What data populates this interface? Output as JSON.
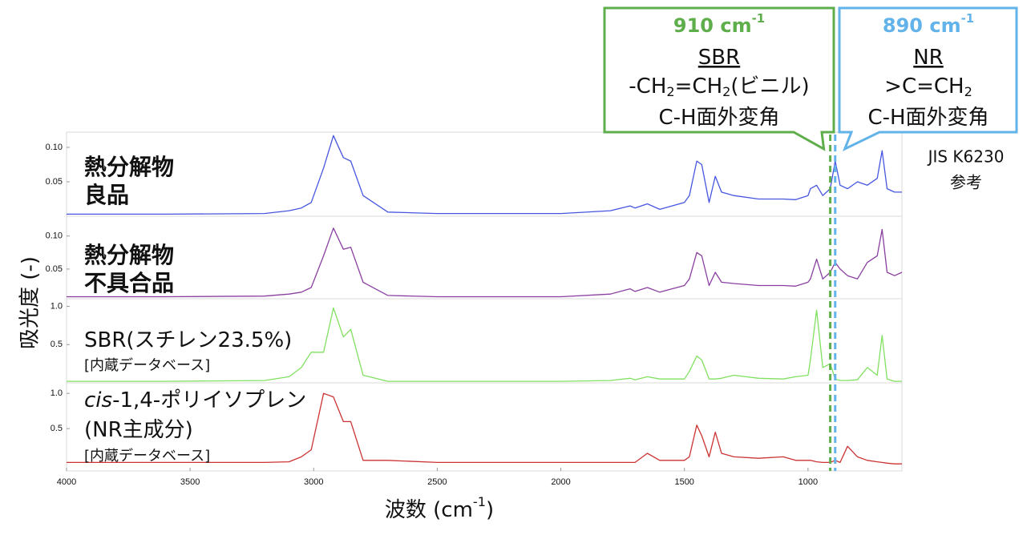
{
  "chart_data": [
    {
      "type": "line",
      "label": [
        [
          "熱分解物"
        ],
        [
          "良品"
        ]
      ],
      "color": "#4656e0",
      "x": [
        4000,
        3600,
        3200,
        3100,
        3050,
        3010,
        2960,
        2920,
        2880,
        2850,
        2800,
        2700,
        2500,
        2000,
        1800,
        1720,
        1700,
        1650,
        1600,
        1500,
        1480,
        1450,
        1430,
        1400,
        1375,
        1350,
        1300,
        1200,
        1100,
        1050,
        1000,
        990,
        965,
        940,
        910,
        890,
        870,
        840,
        800,
        760,
        720,
        700,
        680,
        650,
        620
      ],
      "values": [
        0.003,
        0.003,
        0.004,
        0.008,
        0.012,
        0.02,
        0.07,
        0.117,
        0.085,
        0.08,
        0.03,
        0.006,
        0.004,
        0.004,
        0.008,
        0.015,
        0.012,
        0.018,
        0.01,
        0.02,
        0.03,
        0.08,
        0.075,
        0.02,
        0.058,
        0.035,
        0.03,
        0.025,
        0.025,
        0.024,
        0.03,
        0.04,
        0.045,
        0.03,
        0.04,
        0.08,
        0.045,
        0.04,
        0.05,
        0.045,
        0.055,
        0.095,
        0.04,
        0.035,
        0.035
      ],
      "xlim": [
        4000,
        620
      ],
      "ylim": [
        0,
        0.122
      ],
      "yticks": [
        {
          "value": 0.1,
          "label": "0.10"
        },
        {
          "value": 0.05,
          "label": "0.05"
        }
      ]
    },
    {
      "type": "line",
      "label": [
        [
          "熱分解物"
        ],
        [
          "不具合品"
        ]
      ],
      "color": "#8a3fa0",
      "x": [
        4000,
        3600,
        3200,
        3100,
        3050,
        3010,
        2960,
        2920,
        2880,
        2850,
        2800,
        2700,
        2500,
        2000,
        1800,
        1720,
        1700,
        1650,
        1600,
        1500,
        1480,
        1450,
        1430,
        1400,
        1375,
        1350,
        1300,
        1200,
        1100,
        1050,
        1000,
        990,
        965,
        940,
        910,
        890,
        870,
        840,
        800,
        760,
        720,
        700,
        680,
        650,
        620
      ],
      "values": [
        0.008,
        0.008,
        0.009,
        0.012,
        0.015,
        0.022,
        0.07,
        0.112,
        0.08,
        0.083,
        0.03,
        0.01,
        0.008,
        0.008,
        0.012,
        0.02,
        0.016,
        0.022,
        0.015,
        0.025,
        0.035,
        0.075,
        0.07,
        0.025,
        0.045,
        0.03,
        0.028,
        0.025,
        0.025,
        0.024,
        0.03,
        0.035,
        0.065,
        0.035,
        0.045,
        0.06,
        0.05,
        0.04,
        0.035,
        0.06,
        0.07,
        0.11,
        0.045,
        0.04,
        0.045
      ],
      "xlim": [
        4000,
        620
      ],
      "ylim": [
        0.005,
        0.13
      ],
      "yticks": [
        {
          "value": 0.1,
          "label": "0.10"
        },
        {
          "value": 0.05,
          "label": "0.05"
        }
      ]
    },
    {
      "type": "line",
      "label": [
        [
          "SBR(スチレン23.5%)"
        ],
        [
          "[内蔵データベース]"
        ]
      ],
      "color": "#80e060",
      "x": [
        4000,
        3600,
        3200,
        3100,
        3050,
        3010,
        2960,
        2920,
        2880,
        2850,
        2800,
        2700,
        2500,
        2000,
        1800,
        1720,
        1700,
        1650,
        1600,
        1500,
        1480,
        1450,
        1430,
        1400,
        1375,
        1350,
        1300,
        1200,
        1100,
        1050,
        1000,
        990,
        965,
        940,
        910,
        890,
        870,
        840,
        800,
        760,
        720,
        700,
        680,
        650,
        620
      ],
      "values": [
        0.02,
        0.02,
        0.03,
        0.08,
        0.2,
        0.4,
        0.4,
        0.98,
        0.6,
        0.7,
        0.1,
        0.02,
        0.02,
        0.02,
        0.03,
        0.06,
        0.04,
        0.08,
        0.05,
        0.05,
        0.15,
        0.35,
        0.3,
        0.05,
        0.05,
        0.06,
        0.1,
        0.06,
        0.05,
        0.08,
        0.1,
        0.3,
        0.95,
        0.2,
        0.25,
        0.05,
        0.03,
        0.03,
        0.04,
        0.2,
        0.1,
        0.62,
        0.05,
        0.02,
        0.02
      ],
      "xlim": [
        4000,
        620
      ],
      "ylim": [
        0,
        1.1
      ],
      "yticks": [
        {
          "value": 1,
          "label": "1.0"
        },
        0.5
      ]
    },
    {
      "type": "line",
      "label": [
        [
          "cis",
          "-1,4-ポリイソプレン"
        ],
        [
          "(NR主成分)"
        ],
        [
          "[内蔵データベース]"
        ]
      ],
      "color": "#cc3333",
      "x": [
        4000,
        3600,
        3200,
        3100,
        3050,
        3010,
        2960,
        2920,
        2880,
        2850,
        2800,
        2700,
        2500,
        2000,
        1800,
        1720,
        1700,
        1650,
        1600,
        1500,
        1480,
        1450,
        1430,
        1400,
        1375,
        1350,
        1300,
        1200,
        1100,
        1050,
        1000,
        990,
        965,
        940,
        910,
        890,
        870,
        840,
        800,
        760,
        720,
        700,
        680,
        650,
        620
      ],
      "values": [
        0.02,
        0.02,
        0.02,
        0.03,
        0.1,
        0.2,
        1.0,
        0.95,
        0.6,
        0.6,
        0.05,
        0.05,
        0.02,
        0.02,
        0.02,
        0.02,
        0.02,
        0.15,
        0.05,
        0.05,
        0.1,
        0.55,
        0.4,
        0.1,
        0.45,
        0.15,
        0.1,
        0.08,
        0.1,
        0.05,
        0.05,
        0.05,
        0.03,
        0.02,
        0.02,
        0.05,
        0.02,
        0.25,
        0.1,
        0.05,
        0.03,
        0.02,
        0.01,
        0,
        0
      ],
      "xlim": [
        4000,
        620
      ],
      "ylim": [
        -0.1,
        1.15
      ],
      "yticks": [
        {
          "value": 1,
          "label": "1.0"
        },
        0.5
      ],
      "xticks": [
        4000,
        3500,
        3000,
        2500,
        2000,
        1500,
        1000
      ]
    }
  ],
  "y_label": "吸光度 (-)",
  "x_label": [
    "波数 (cm",
    "-1",
    ")"
  ],
  "callouts": [
    {
      "x": 910,
      "color": "#5fae4c",
      "title": [
        "910 cm",
        "-1"
      ],
      "lines": [
        [
          "SBR"
        ],
        [
          "-CH",
          "2",
          "=CH",
          "2",
          "(ビニル)"
        ],
        [
          "C-H面外変角"
        ]
      ]
    },
    {
      "x": 890,
      "color": "#62b3ea",
      "title": [
        "890 cm",
        "-1"
      ],
      "lines": [
        [
          "NR"
        ],
        [
          ">C=CH",
          "2"
        ],
        [
          "C-H面外変角"
        ]
      ]
    }
  ],
  "note": [
    "JIS K6230",
    "参考"
  ]
}
